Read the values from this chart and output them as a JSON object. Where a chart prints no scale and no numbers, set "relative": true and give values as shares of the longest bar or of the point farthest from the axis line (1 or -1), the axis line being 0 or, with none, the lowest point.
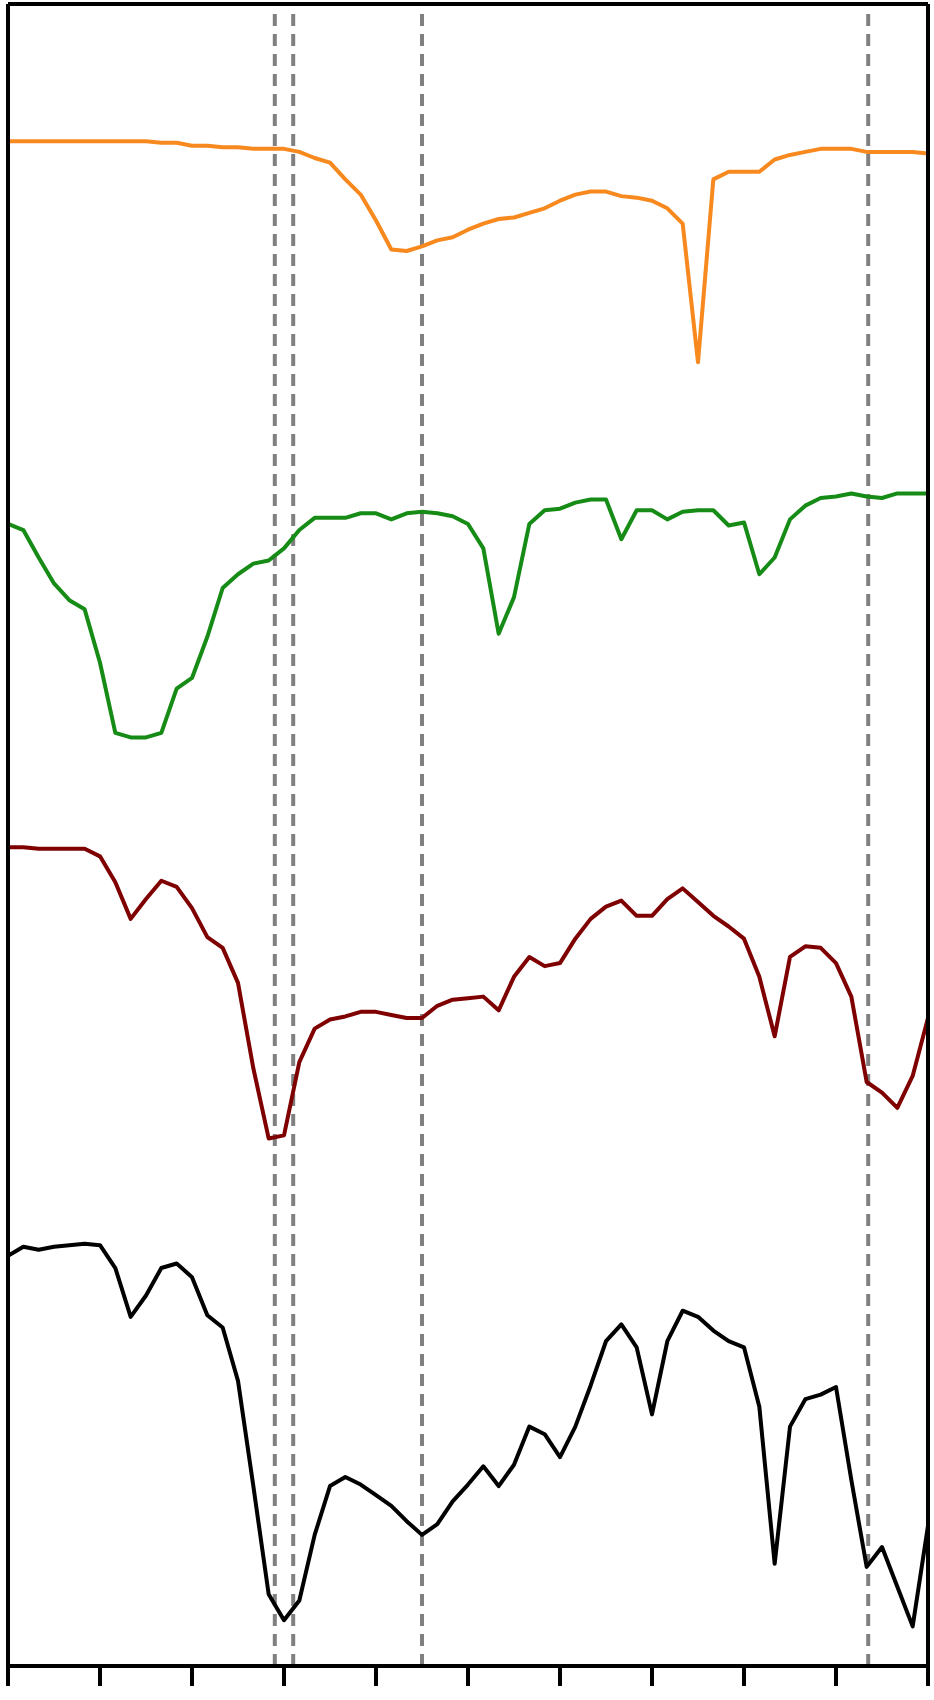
{
  "chart_data": {
    "type": "line",
    "relative": true,
    "marker": "none",
    "line_style": "solid",
    "categories": [
      null,
      null,
      null,
      null,
      null,
      null,
      null,
      null,
      null,
      null,
      null,
      null,
      null,
      null,
      null,
      null,
      null,
      null,
      null,
      null,
      null,
      null,
      null,
      null,
      null,
      null,
      null,
      null,
      null,
      null,
      null,
      null,
      null,
      null,
      null,
      null,
      null,
      null,
      null,
      null,
      null,
      null,
      null,
      null,
      null,
      null,
      null,
      null,
      null,
      null,
      null,
      null,
      null,
      null,
      null,
      null,
      null,
      null,
      null,
      null,
      null
    ],
    "series": [
      {
        "color": "#f7891f",
        "values": [
          1,
          1,
          1,
          1,
          1,
          1,
          1,
          1,
          1,
          1,
          0.999,
          0.999,
          0.997,
          0.997,
          0.996,
          0.996,
          0.995,
          0.995,
          0.995,
          0.993,
          0.989,
          0.986,
          0.975,
          0.965,
          0.948,
          0.929,
          0.928,
          0.931,
          0.935,
          0.937,
          0.942,
          0.946,
          0.949,
          0.95,
          0.953,
          0.956,
          0.961,
          0.965,
          0.967,
          0.967,
          0.964,
          0.963,
          0.961,
          0.956,
          0.946,
          0.855,
          0.975,
          0.98,
          0.98,
          0.98,
          0.988,
          0.991,
          0.993,
          0.995,
          0.995,
          0.995,
          0.993,
          0.993,
          0.993,
          0.993,
          0.992
        ]
      },
      {
        "color": "#168c16",
        "values": [
          0.749,
          0.745,
          0.727,
          0.71,
          0.699,
          0.693,
          0.658,
          0.612,
          0.609,
          0.609,
          0.612,
          0.641,
          0.648,
          0.675,
          0.707,
          0.716,
          0.723,
          0.725,
          0.733,
          0.745,
          0.753,
          0.753,
          0.753,
          0.756,
          0.756,
          0.752,
          0.756,
          0.757,
          0.756,
          0.754,
          0.749,
          0.733,
          0.677,
          0.701,
          0.749,
          0.758,
          0.759,
          0.763,
          0.765,
          0.765,
          0.739,
          0.758,
          0.758,
          0.752,
          0.757,
          0.758,
          0.758,
          0.748,
          0.75,
          0.716,
          0.727,
          0.752,
          0.761,
          0.766,
          0.767,
          0.769,
          0.767,
          0.766,
          0.769,
          0.769,
          0.769
        ]
      },
      {
        "color": "#7f0000",
        "values": [
          0.537,
          0.537,
          0.536,
          0.536,
          0.536,
          0.536,
          0.531,
          0.514,
          0.49,
          0.503,
          0.515,
          0.511,
          0.497,
          0.478,
          0.471,
          0.448,
          0.392,
          0.346,
          0.348,
          0.396,
          0.418,
          0.424,
          0.426,
          0.429,
          0.429,
          0.427,
          0.425,
          0.425,
          0.433,
          0.437,
          0.438,
          0.439,
          0.43,
          0.452,
          0.465,
          0.459,
          0.461,
          0.477,
          0.49,
          0.498,
          0.502,
          0.492,
          0.492,
          0.503,
          0.51,
          0.501,
          0.492,
          0.485,
          0.477,
          0.452,
          0.413,
          0.465,
          0.472,
          0.471,
          0.461,
          0.439,
          0.383,
          0.376,
          0.366,
          0.387,
          0.425
        ]
      },
      {
        "color": "#000000",
        "values": [
          0.269,
          0.275,
          0.273,
          0.275,
          0.276,
          0.277,
          0.276,
          0.261,
          0.229,
          0.243,
          0.261,
          0.264,
          0.255,
          0.23,
          0.222,
          0.187,
          0.118,
          0.047,
          0.03,
          0.043,
          0.086,
          0.118,
          0.124,
          0.119,
          0.112,
          0.105,
          0.095,
          0.086,
          0.093,
          0.108,
          0.119,
          0.131,
          0.118,
          0.132,
          0.157,
          0.152,
          0.137,
          0.157,
          0.184,
          0.213,
          0.224,
          0.209,
          0.165,
          0.213,
          0.233,
          0.229,
          0.22,
          0.213,
          0.209,
          0.17,
          0.067,
          0.157,
          0.175,
          0.178,
          0.183,
          0.122,
          0.065,
          0.078,
          0.052,
          0.026,
          0.092
        ]
      }
    ]
  }
}
